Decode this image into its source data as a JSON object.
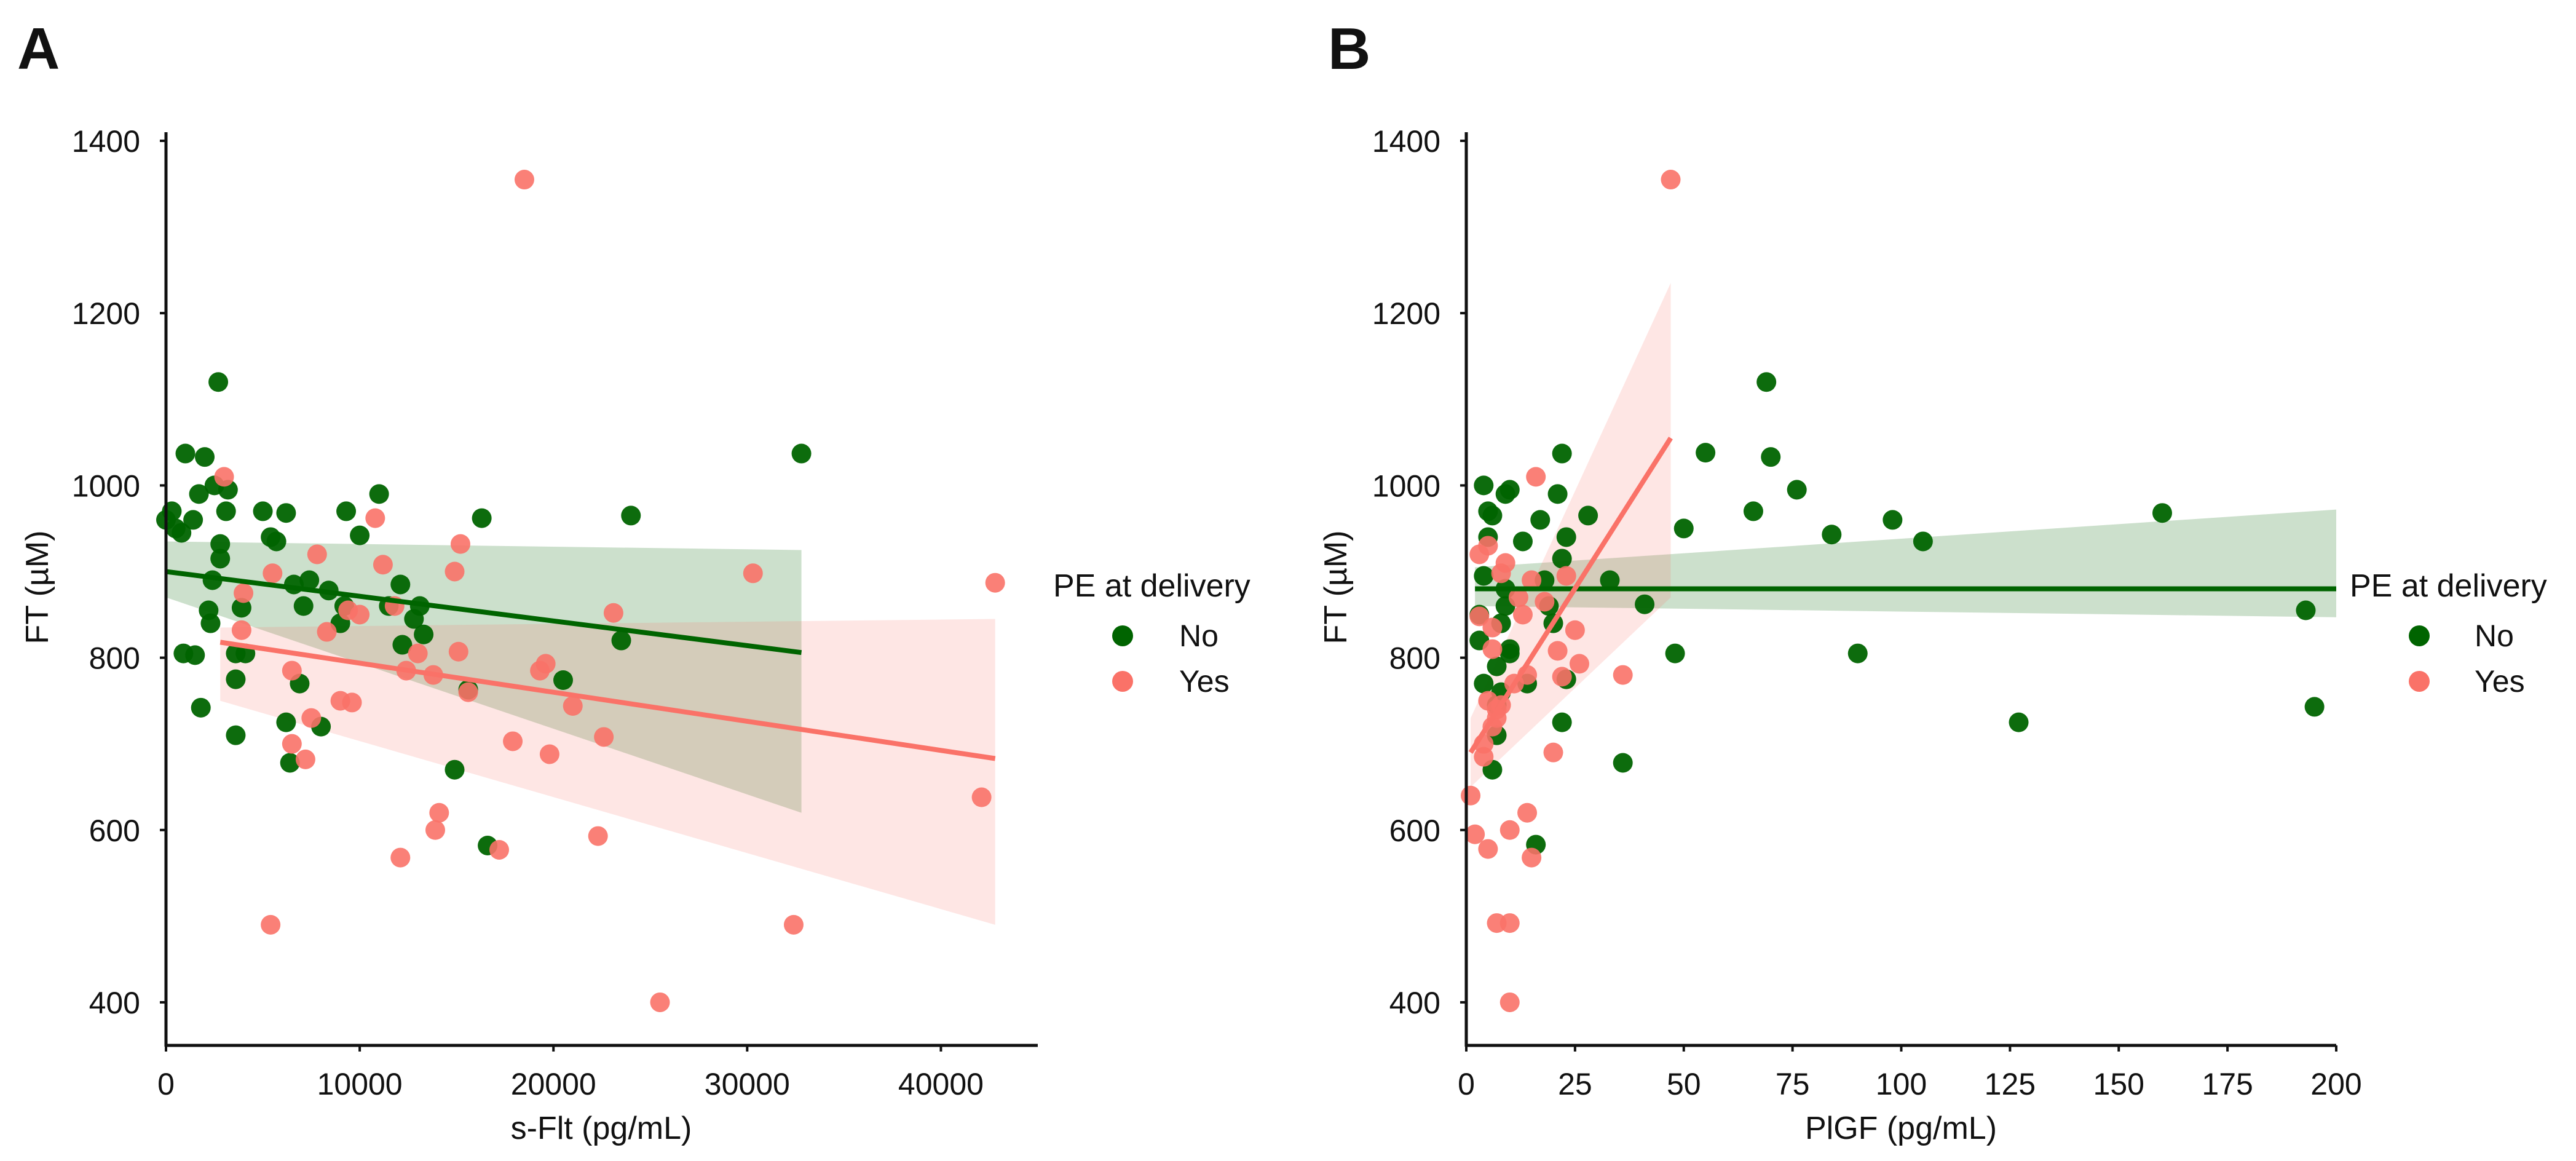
{
  "chart_data": [
    {
      "type": "scatter",
      "panel_label": "A",
      "title": "",
      "xlabel": "s-Flt (pg/mL)",
      "ylabel": "FT (µM)",
      "xlim": [
        0,
        45000
      ],
      "ylim": [
        350,
        1410
      ],
      "xticks": [
        0,
        10000,
        20000,
        30000,
        40000
      ],
      "xtick_labels": [
        "0",
        "10000",
        "20000",
        "30000",
        "40000"
      ],
      "yticks": [
        400,
        600,
        800,
        1000,
        1200,
        1400
      ],
      "ytick_labels": [
        "400",
        "600",
        "800",
        "1000",
        "1200",
        "1400"
      ],
      "grid": false,
      "legend": {
        "title": "PE at delivery",
        "placement": "right",
        "entries": [
          "No",
          "Yes"
        ]
      },
      "series": [
        {
          "name": "No",
          "color": "#006400",
          "points": [
            [
              0,
              960
            ],
            [
              300,
              970
            ],
            [
              500,
              950
            ],
            [
              800,
              945
            ],
            [
              900,
              805
            ],
            [
              1000,
              1037
            ],
            [
              1400,
              960
            ],
            [
              1500,
              803
            ],
            [
              1700,
              990
            ],
            [
              1800,
              742
            ],
            [
              2000,
              1033
            ],
            [
              2200,
              855
            ],
            [
              2300,
              840
            ],
            [
              2400,
              890
            ],
            [
              2500,
              1000
            ],
            [
              2700,
              1120
            ],
            [
              2800,
              932
            ],
            [
              2800,
              915
            ],
            [
              3100,
              970
            ],
            [
              3200,
              995
            ],
            [
              3600,
              710
            ],
            [
              3600,
              805
            ],
            [
              3600,
              775
            ],
            [
              3900,
              858
            ],
            [
              4100,
              805
            ],
            [
              5000,
              970
            ],
            [
              5400,
              940
            ],
            [
              5700,
              935
            ],
            [
              6200,
              968
            ],
            [
              6200,
              725
            ],
            [
              6400,
              678
            ],
            [
              6600,
              885
            ],
            [
              6900,
              770
            ],
            [
              7100,
              860
            ],
            [
              7400,
              890
            ],
            [
              8000,
              720
            ],
            [
              8400,
              878
            ],
            [
              9000,
              840
            ],
            [
              9200,
              860
            ],
            [
              9300,
              970
            ],
            [
              10000,
              942
            ],
            [
              11000,
              990
            ],
            [
              11500,
              860
            ],
            [
              12100,
              885
            ],
            [
              12200,
              815
            ],
            [
              12800,
              845
            ],
            [
              13100,
              860
            ],
            [
              13300,
              827
            ],
            [
              14900,
              670
            ],
            [
              15600,
              763
            ],
            [
              16300,
              962
            ],
            [
              16600,
              582
            ],
            [
              20500,
              774
            ],
            [
              23500,
              820
            ],
            [
              24000,
              965
            ],
            [
              32800,
              1037
            ]
          ],
          "fit": {
            "x": [
              0,
              32800
            ],
            "y": [
              900,
              806
            ]
          },
          "ci": {
            "x": [
              0,
              32800
            ],
            "upper": [
              935,
              925
            ],
            "lower": [
              870,
              620
            ]
          }
        },
        {
          "name": "Yes",
          "color": "#FA7268",
          "points": [
            [
              3000,
              1010
            ],
            [
              3900,
              832
            ],
            [
              4000,
              875
            ],
            [
              5400,
              490
            ],
            [
              5500,
              898
            ],
            [
              6500,
              785
            ],
            [
              6500,
              700
            ],
            [
              7200,
              682
            ],
            [
              7500,
              730
            ],
            [
              7800,
              920
            ],
            [
              8300,
              830
            ],
            [
              9000,
              750
            ],
            [
              9400,
              855
            ],
            [
              9600,
              748
            ],
            [
              10000,
              850
            ],
            [
              10800,
              962
            ],
            [
              11200,
              908
            ],
            [
              11800,
              860
            ],
            [
              12100,
              568
            ],
            [
              12400,
              785
            ],
            [
              13000,
              805
            ],
            [
              13800,
              780
            ],
            [
              13900,
              600
            ],
            [
              14100,
              620
            ],
            [
              14900,
              900
            ],
            [
              15100,
              807
            ],
            [
              15200,
              932
            ],
            [
              15600,
              760
            ],
            [
              17200,
              577
            ],
            [
              17900,
              703
            ],
            [
              18500,
              1355
            ],
            [
              19300,
              785
            ],
            [
              19600,
              793
            ],
            [
              19800,
              688
            ],
            [
              21000,
              744
            ],
            [
              22300,
              593
            ],
            [
              22600,
              708
            ],
            [
              23100,
              852
            ],
            [
              25500,
              400
            ],
            [
              30300,
              898
            ],
            [
              32400,
              490
            ],
            [
              42100,
              638
            ],
            [
              42800,
              887
            ]
          ],
          "fit": {
            "x": [
              2800,
              42800
            ],
            "y": [
              818,
              683
            ]
          },
          "ci": {
            "x": [
              2800,
              42800
            ],
            "upper": [
              835,
              845
            ],
            "lower": [
              750,
              490
            ]
          }
        }
      ]
    },
    {
      "type": "scatter",
      "panel_label": "B",
      "title": "",
      "xlabel": "PlGF (pg/mL)",
      "ylabel": "FT (µM)",
      "xlim": [
        0,
        200
      ],
      "ylim": [
        350,
        1410
      ],
      "xticks": [
        0,
        25,
        50,
        75,
        100,
        125,
        150,
        175,
        200
      ],
      "xtick_labels": [
        "0",
        "25",
        "50",
        "75",
        "100",
        "125",
        "150",
        "175",
        "200"
      ],
      "yticks": [
        400,
        600,
        800,
        1000,
        1200,
        1400
      ],
      "ytick_labels": [
        "400",
        "600",
        "800",
        "1000",
        "1200",
        "1400"
      ],
      "grid": false,
      "legend": {
        "title": "PE at delivery",
        "placement": "right",
        "entries": [
          "No",
          "Yes"
        ]
      },
      "series": [
        {
          "name": "No",
          "color": "#006400",
          "points": [
            [
              3,
              850
            ],
            [
              3,
              820
            ],
            [
              4,
              770
            ],
            [
              4,
              1000
            ],
            [
              4,
              895
            ],
            [
              5,
              940
            ],
            [
              5,
              970
            ],
            [
              6,
              670
            ],
            [
              6,
              965
            ],
            [
              7,
              790
            ],
            [
              7,
              745
            ],
            [
              7,
              710
            ],
            [
              8,
              760
            ],
            [
              8,
              840
            ],
            [
              9,
              990
            ],
            [
              9,
              880
            ],
            [
              9,
              860
            ],
            [
              10,
              810
            ],
            [
              10,
              805
            ],
            [
              10,
              995
            ],
            [
              13,
              935
            ],
            [
              14,
              770
            ],
            [
              16,
              583
            ],
            [
              17,
              960
            ],
            [
              18,
              890
            ],
            [
              19,
              860
            ],
            [
              20,
              840
            ],
            [
              21,
              990
            ],
            [
              22,
              915
            ],
            [
              22,
              725
            ],
            [
              22,
              1037
            ],
            [
              23,
              940
            ],
            [
              23,
              775
            ],
            [
              28,
              965
            ],
            [
              33,
              890
            ],
            [
              36,
              678
            ],
            [
              41,
              862
            ],
            [
              48,
              805
            ],
            [
              50,
              950
            ],
            [
              55,
              1038
            ],
            [
              66,
              970
            ],
            [
              69,
              1120
            ],
            [
              70,
              1033
            ],
            [
              76,
              995
            ],
            [
              84,
              943
            ],
            [
              90,
              805
            ],
            [
              98,
              960
            ],
            [
              105,
              935
            ],
            [
              127,
              725
            ],
            [
              160,
              968
            ],
            [
              193,
              855
            ],
            [
              195,
              743
            ]
          ],
          "fit": {
            "x": [
              2,
              200
            ],
            "y": [
              880,
              880
            ]
          },
          "ci": {
            "x": [
              2,
              200
            ],
            "upper": [
              905,
              972
            ],
            "lower": [
              860,
              847
            ]
          }
        },
        {
          "name": "Yes",
          "color": "#FA7268",
          "points": [
            [
              1,
              640
            ],
            [
              2,
              595
            ],
            [
              3,
              920
            ],
            [
              3,
              848
            ],
            [
              4,
              685
            ],
            [
              4,
              700
            ],
            [
              5,
              750
            ],
            [
              5,
              930
            ],
            [
              5,
              578
            ],
            [
              6,
              810
            ],
            [
              6,
              720
            ],
            [
              6,
              835
            ],
            [
              7,
              492
            ],
            [
              7,
              740
            ],
            [
              7,
              730
            ],
            [
              8,
              745
            ],
            [
              8,
              898
            ],
            [
              9,
              910
            ],
            [
              10,
              492
            ],
            [
              10,
              400
            ],
            [
              10,
              600
            ],
            [
              11,
              770
            ],
            [
              12,
              870
            ],
            [
              13,
              850
            ],
            [
              14,
              620
            ],
            [
              14,
              780
            ],
            [
              15,
              568
            ],
            [
              15,
              890
            ],
            [
              16,
              1010
            ],
            [
              18,
              865
            ],
            [
              20,
              690
            ],
            [
              21,
              808
            ],
            [
              22,
              778
            ],
            [
              23,
              895
            ],
            [
              25,
              832
            ],
            [
              26,
              793
            ],
            [
              36,
              780
            ],
            [
              47,
              1355
            ]
          ],
          "fit": {
            "x": [
              1,
              47
            ],
            "y": [
              690,
              1055
            ]
          },
          "ci": {
            "x": [
              1,
              47
            ],
            "upper": [
              730,
              1235
            ],
            "lower": [
              650,
              870
            ]
          }
        }
      ]
    }
  ]
}
